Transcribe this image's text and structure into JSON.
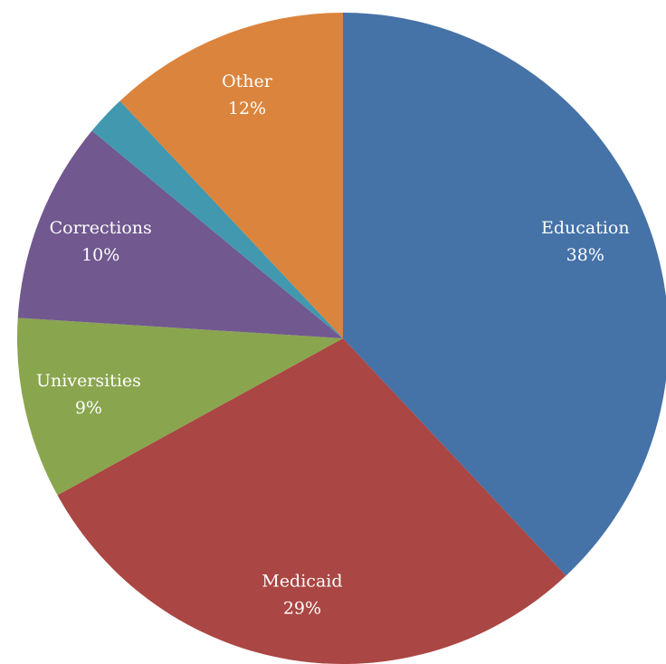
{
  "chart_data": {
    "type": "pie",
    "categories": [
      "Education",
      "Medicaid",
      "Universities",
      "Corrections",
      null,
      "Other"
    ],
    "values": [
      38,
      29,
      9,
      10,
      2,
      12
    ],
    "value_labels": [
      "38%",
      "29%",
      "9%",
      "10%",
      null,
      "12%"
    ],
    "colors": [
      "#4572a7",
      "#aa4643",
      "#89a54e",
      "#71588f",
      "#4198af",
      "#db843d"
    ]
  }
}
